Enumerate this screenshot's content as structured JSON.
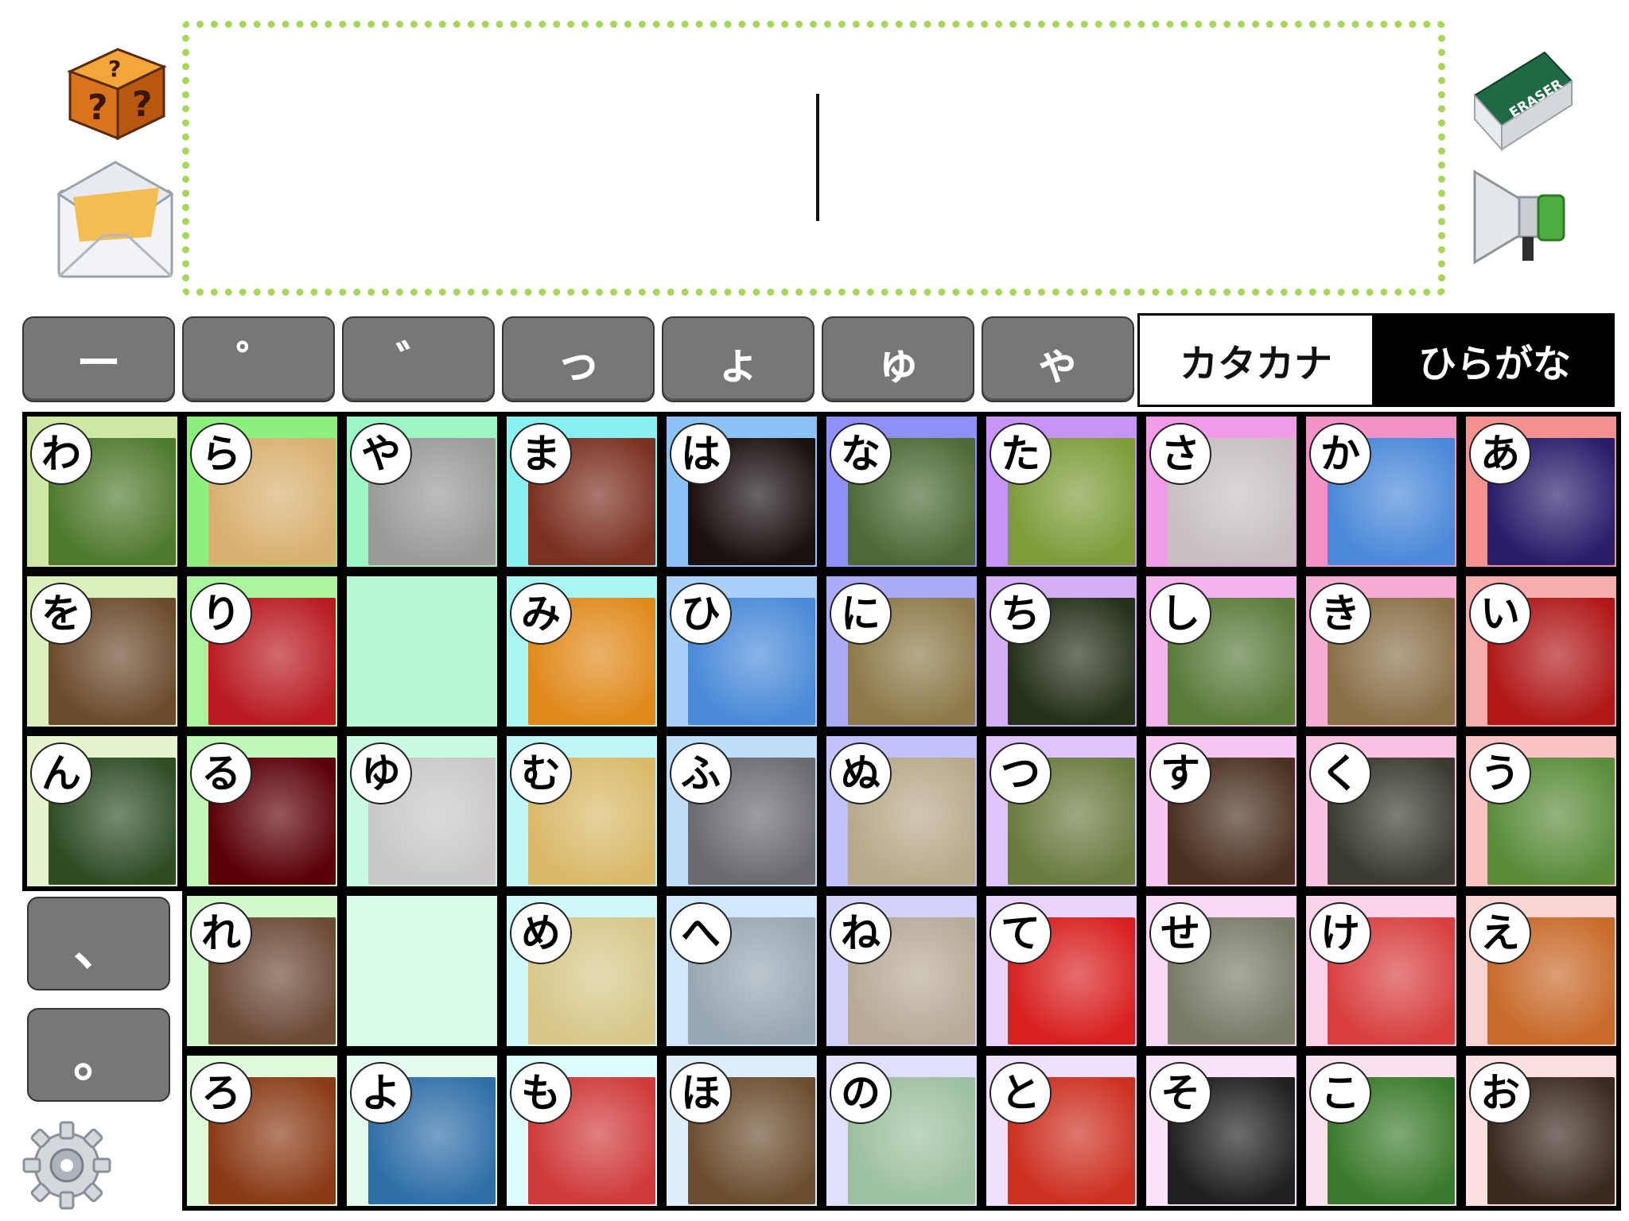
{
  "toolbar": {
    "random_icon": "question-block-icon",
    "mail_icon": "envelope-icon",
    "eraser_icon": "eraser-icon",
    "eraser_label": "ERASER",
    "speak_icon": "megaphone-icon",
    "settings_icon": "gear-icon"
  },
  "text_area": {
    "value": ""
  },
  "modifiers": [
    "ー",
    "゜",
    "゛",
    "っ",
    "ょ",
    "ゅ",
    "ゃ"
  ],
  "modes": {
    "katakana": "カタカナ",
    "hiragana": "ひらがな",
    "active": "hiragana"
  },
  "punctuation": {
    "comma": "、",
    "period": "。"
  },
  "columns": [
    {
      "bg": "#cfe9a5",
      "pics": [
        "#4f7a2e",
        "#6b4b2c",
        "#2f4d25",
        null,
        null
      ],
      "kana": [
        "わ",
        "を",
        "ん",
        null,
        null
      ]
    },
    {
      "bg": "#8cf07c",
      "pics": [
        "#d8b070",
        "#b81c22",
        "#5a0008",
        "#6b4a36",
        "#8a3b16"
      ],
      "kana": [
        "ら",
        "り",
        "る",
        "れ",
        "ろ"
      ]
    },
    {
      "bg": "#9ef5c4",
      "pics": [
        "#9a9a9a",
        null,
        "#c8c8c8",
        null,
        "#2f6fa8"
      ],
      "kana": [
        "や",
        null,
        "ゆ",
        null,
        "よ"
      ]
    },
    {
      "bg": "#8af0ef",
      "pics": [
        "#7a3020",
        "#e08a1c",
        "#d9b96a",
        "#d7c78a",
        "#cf3a3a"
      ],
      "kana": [
        "ま",
        "み",
        "む",
        "め",
        "も"
      ]
    },
    {
      "bg": "#8cc2f5",
      "pics": [
        "#1a1010",
        "#4a8ad8",
        "#6a6a70",
        "#99a7b2",
        "#6b4e2f"
      ],
      "kana": [
        "は",
        "ひ",
        "ふ",
        "へ",
        "ほ"
      ]
    },
    {
      "bg": "#8f8ff8",
      "pics": [
        "#4d6a36",
        "#8d7a4a",
        "#b8a98a",
        "#b7ab98",
        "#9cc0a0"
      ],
      "kana": [
        "な",
        "に",
        "ぬ",
        "ね",
        "の"
      ]
    },
    {
      "bg": "#c594f6",
      "pics": [
        "#7e9c3a",
        "#24301a",
        "#6a7b40",
        "#d82020",
        "#cc3020"
      ],
      "kana": [
        "た",
        "ち",
        "つ",
        "て",
        "と"
      ]
    },
    {
      "bg": "#f09ae8",
      "pics": [
        "#c8c0c0",
        "#5a7a3a",
        "#4a3020",
        "#7a7a6a",
        "#202020"
      ],
      "kana": [
        "さ",
        "し",
        "す",
        "せ",
        "そ"
      ]
    },
    {
      "bg": "#f292c6",
      "pics": [
        "#4a88d8",
        "#8a7048",
        "#3a3a30",
        "#d84040",
        "#3b7a2c"
      ],
      "kana": [
        "か",
        "き",
        "く",
        "け",
        "こ"
      ]
    },
    {
      "bg": "#f39190",
      "pics": [
        "#2a1c6a",
        "#b01818",
        "#5a8c3a",
        "#c86a2a",
        "#3a2a20"
      ],
      "kana": [
        "あ",
        "い",
        "う",
        "え",
        "お"
      ]
    }
  ]
}
